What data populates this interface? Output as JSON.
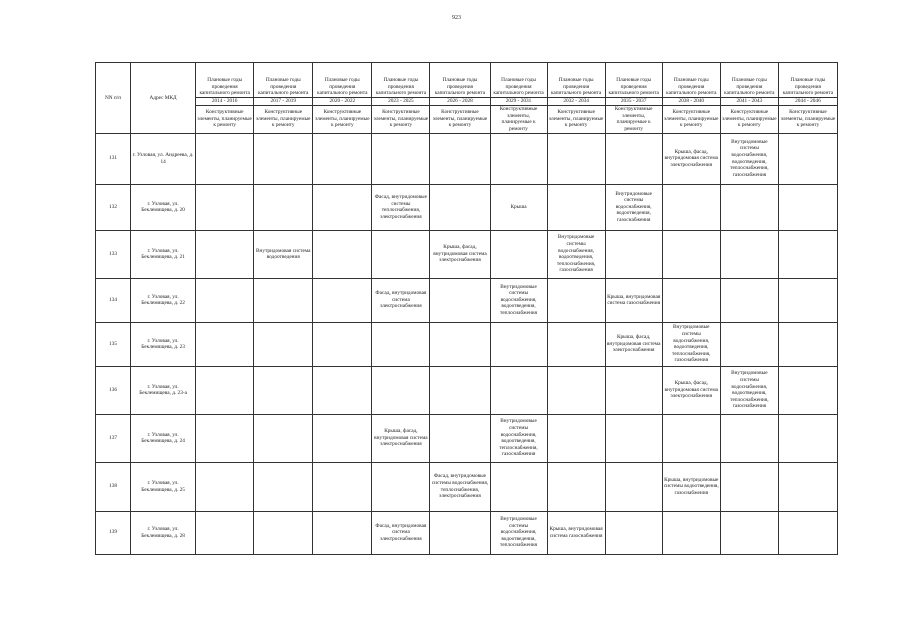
{
  "page_number": "923",
  "header": {
    "num_col": "NN п/п",
    "address_col": "Адрес МКД",
    "period_label": "Плановые годы проведения капитального ремонта",
    "elements_label": "Конструктивные элементы, планируемые к ремонту",
    "periods": [
      "2014 - 2016",
      "2017 - 2019",
      "2020 - 2022",
      "2023 - 2025",
      "2026 - 2028",
      "2029 - 2031",
      "2032 - 2034",
      "2035 - 2037",
      "2038 - 2040",
      "2041 - 2043",
      "2044 - 2046"
    ]
  },
  "rows": [
    {
      "num": "131",
      "address": "г. Узловая, ул. Андреева, д. 14",
      "cells": [
        "",
        "",
        "",
        "",
        "",
        "",
        "",
        "",
        "Крыша, фасад, внутридомовая система электроснабжения",
        "Внутридомовые системы водоснабжения, водоотведения, теплоснабжения, газоснабжения",
        ""
      ]
    },
    {
      "num": "132",
      "address": "г. Узловая, ул. Беклемищева, д. 20",
      "cells": [
        "",
        "",
        "",
        "Фасад, внутридомовые системы теплоснабжения, электроснабжения",
        "",
        "Крыша",
        "",
        "Внутридомовые системы водоснабжения, водоотведения, газоснабжения",
        "",
        "",
        ""
      ]
    },
    {
      "num": "133",
      "address": "г. Узловая, ул. Беклемищева, д. 21",
      "cells": [
        "",
        "Внутридомовая система водоотведения",
        "",
        "",
        "Крыша, фасад, внутридомовая система электроснабжения",
        "",
        "Внутридомовые системы водоснабжения, водоотведения, теплоснабжения, газоснабжения",
        "",
        "",
        "",
        ""
      ]
    },
    {
      "num": "134",
      "address": "г. Узловая, ул. Беклемищева, д. 22",
      "cells": [
        "",
        "",
        "",
        "Фасад, внутридомовая система электроснабжения",
        "",
        "Внутридомовые системы водоснабжения, водоотведения, теплоснабжения",
        "",
        "Крыша, внутридомовая система газоснабжения",
        "",
        "",
        ""
      ]
    },
    {
      "num": "135",
      "address": "г. Узловая, ул. Беклемищева, д. 23",
      "cells": [
        "",
        "",
        "",
        "",
        "",
        "",
        "",
        "Крыша, фасад, внутридомовая система электроснабжения",
        "Внутридомовые системы водоснабжения, водоотведения, теплоснабжения, газоснабжения",
        "",
        ""
      ]
    },
    {
      "num": "136",
      "address": "г. Узловая, ул. Беклемищева, д. 23-а",
      "cells": [
        "",
        "",
        "",
        "",
        "",
        "",
        "",
        "",
        "Крыша, фасад, внутридомовая система электроснабжения",
        "Внутридомовые системы водоснабжения, водоотведения, теплоснабжения, газоснабжения",
        ""
      ]
    },
    {
      "num": "137",
      "address": "г. Узловая, ул. Беклемищева, д. 24",
      "cells": [
        "",
        "",
        "",
        "Крыша, фасад, внутридомовая система электроснабжения",
        "",
        "Внутридомовые системы водоснабжения, водоотведения, теплоснабжения, газоснабжения",
        "",
        "",
        "",
        "",
        ""
      ]
    },
    {
      "num": "138",
      "address": "г. Узловая, ул. Беклемищева, д. 25",
      "cells": [
        "",
        "",
        "",
        "",
        "Фасад, внутридомовые системы водоснабжения, теплоснабжения, электроснабжения",
        "",
        "",
        "",
        "Крыша, внутридомовые системы водоотведения, газоснабжения",
        "",
        ""
      ]
    },
    {
      "num": "139",
      "address": "г. Узловая, ул. Беклемищева, д. 28",
      "cells": [
        "",
        "",
        "",
        "Фасад, внутридомовая система электроснабжения",
        "",
        "Внутридомовые системы водоснабжения, водоотведения, теплоснабжения",
        "Крыша, внутридомовая система газоснабжения",
        "",
        "",
        "",
        ""
      ]
    }
  ]
}
